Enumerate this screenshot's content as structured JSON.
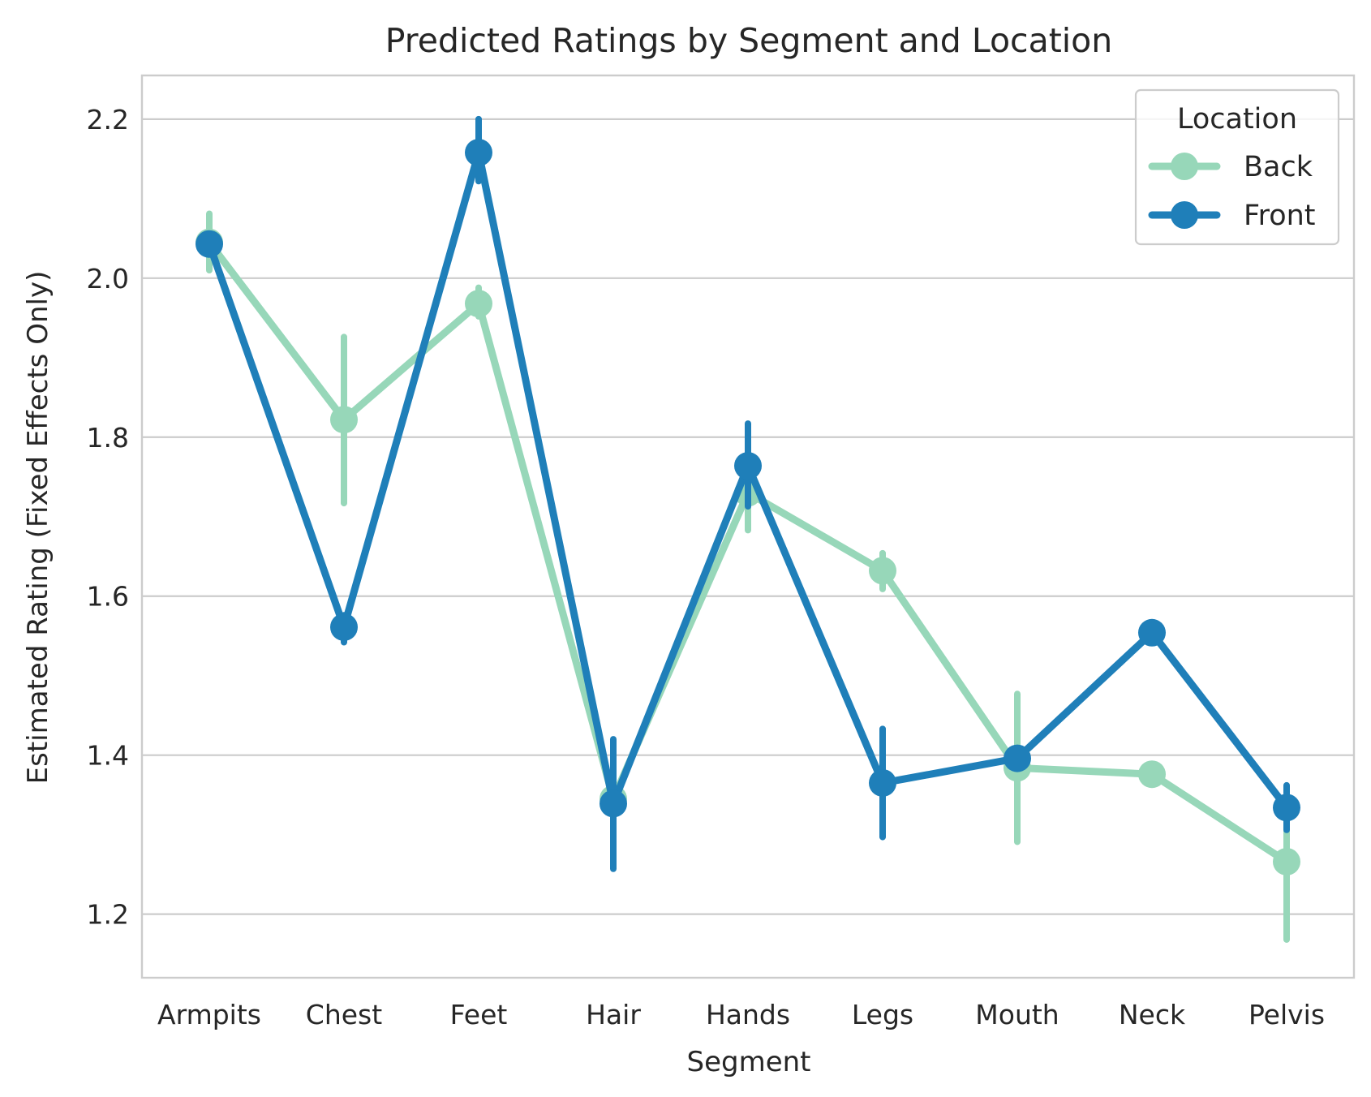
{
  "chart_data": {
    "type": "line",
    "title": "Predicted Ratings by Segment and Location",
    "xlabel": "Segment",
    "ylabel": "Estimated Rating (Fixed Effects Only)",
    "categories": [
      "Armpits",
      "Chest",
      "Feet",
      "Hair",
      "Hands",
      "Legs",
      "Mouth",
      "Neck",
      "Pelvis"
    ],
    "ylim": [
      1.12,
      2.255
    ],
    "yticks": [
      "1.2",
      "1.4",
      "1.6",
      "1.8",
      "2.0",
      "2.2"
    ],
    "grid": "horizontal",
    "legend": {
      "title": "Location",
      "placement": "top-right"
    },
    "series": [
      {
        "name": "Back",
        "color": "#97d7b9",
        "values": [
          2.045,
          1.822,
          1.968,
          1.345,
          1.73,
          1.632,
          1.384,
          1.376,
          1.266
        ],
        "err_low": [
          2.01,
          1.717,
          1.952,
          1.33,
          1.683,
          1.609,
          1.291,
          1.37,
          1.168
        ],
        "err_high": [
          2.081,
          1.926,
          1.988,
          1.357,
          1.77,
          1.654,
          1.477,
          1.381,
          1.352
        ]
      },
      {
        "name": "Front",
        "color": "#1f7fb9",
        "values": [
          2.043,
          1.561,
          2.158,
          1.339,
          1.764,
          1.365,
          1.396,
          1.554,
          1.334
        ],
        "err_low": [
          2.036,
          1.542,
          2.122,
          1.257,
          1.713,
          1.297,
          1.39,
          1.549,
          1.306
        ],
        "err_high": [
          2.05,
          1.576,
          2.2,
          1.42,
          1.817,
          1.433,
          1.403,
          1.56,
          1.362
        ]
      }
    ]
  }
}
